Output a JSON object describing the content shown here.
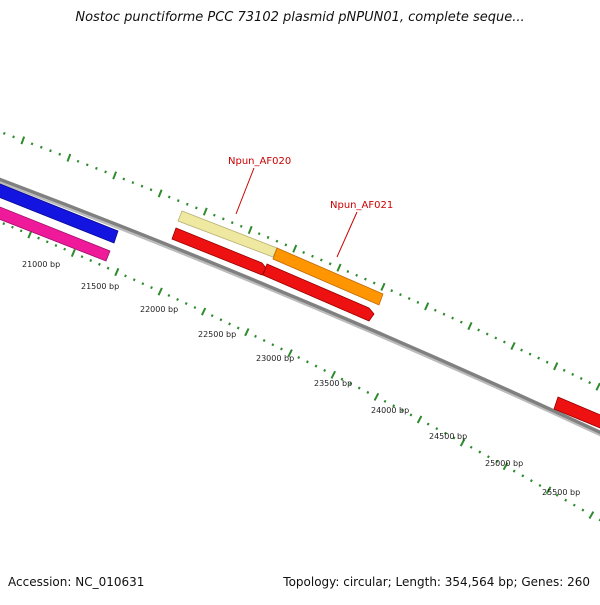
{
  "title": "Nostoc punctiforme PCC 73102 plasmid pNPUN01, complete seque...",
  "footer": {
    "accession": "Accession: NC_010631",
    "summary": "Topology: circular; Length: 354,564 bp; Genes: 260"
  },
  "colors": {
    "background": "#ffffff",
    "backbone": "#808080",
    "tick": "#2e8b2e",
    "gene_label": "#cc0000",
    "blue_gene": "#1414e0",
    "pink_gene": "#ee1a9a",
    "red_gene": "#ee1111",
    "pale_gene": "#eee8a0",
    "orange_gene": "#ff9500"
  },
  "scale_labels": [
    "21000 bp",
    "21500 bp",
    "22000 bp",
    "22500 bp",
    "23000 bp",
    "23500 bp",
    "24000 bp",
    "24500 bp",
    "25000 bp",
    "25500 bp"
  ],
  "gene_labels": [
    "Npun_AF020",
    "Npun_AF021"
  ]
}
